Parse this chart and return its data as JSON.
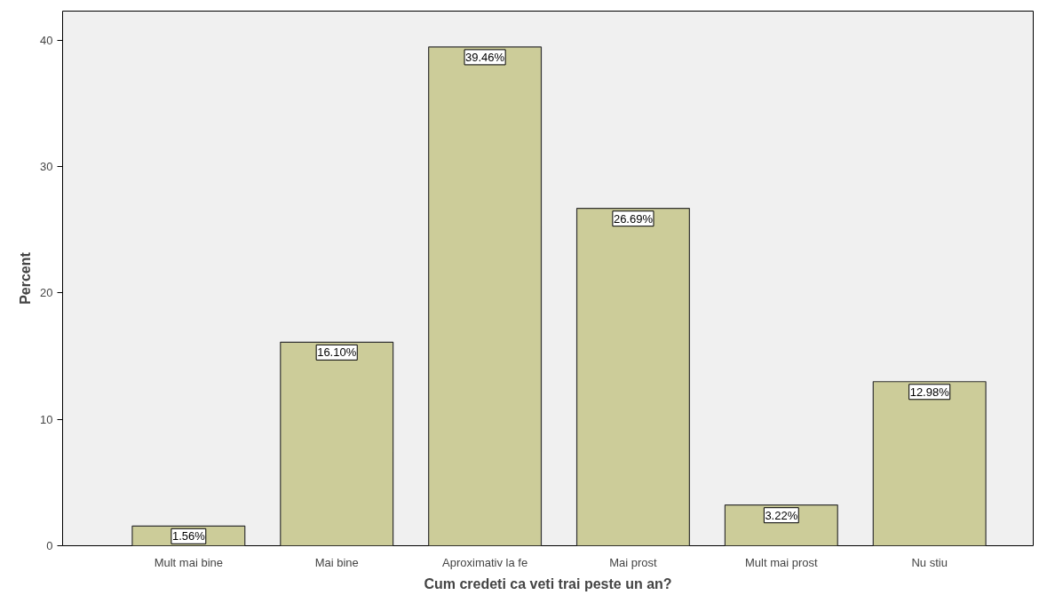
{
  "chart_data": {
    "type": "bar",
    "xlabel": "Cum credeti ca veti trai peste un an?",
    "ylabel": "Percent",
    "categories": [
      "Mult mai bine",
      "Mai bine",
      "Aproximativ la fe",
      "Mai prost",
      "Mult mai prost",
      "Nu stiu"
    ],
    "values": [
      1.56,
      16.1,
      39.46,
      26.69,
      3.22,
      12.98
    ],
    "value_labels": [
      "1.56%",
      "16.10%",
      "39.46%",
      "26.69%",
      "3.22%",
      "12.98%"
    ],
    "color": "#cccc99",
    "ylim": [
      0,
      42.3
    ],
    "yticks": [
      0,
      10,
      20,
      30,
      40
    ],
    "grid": false
  }
}
